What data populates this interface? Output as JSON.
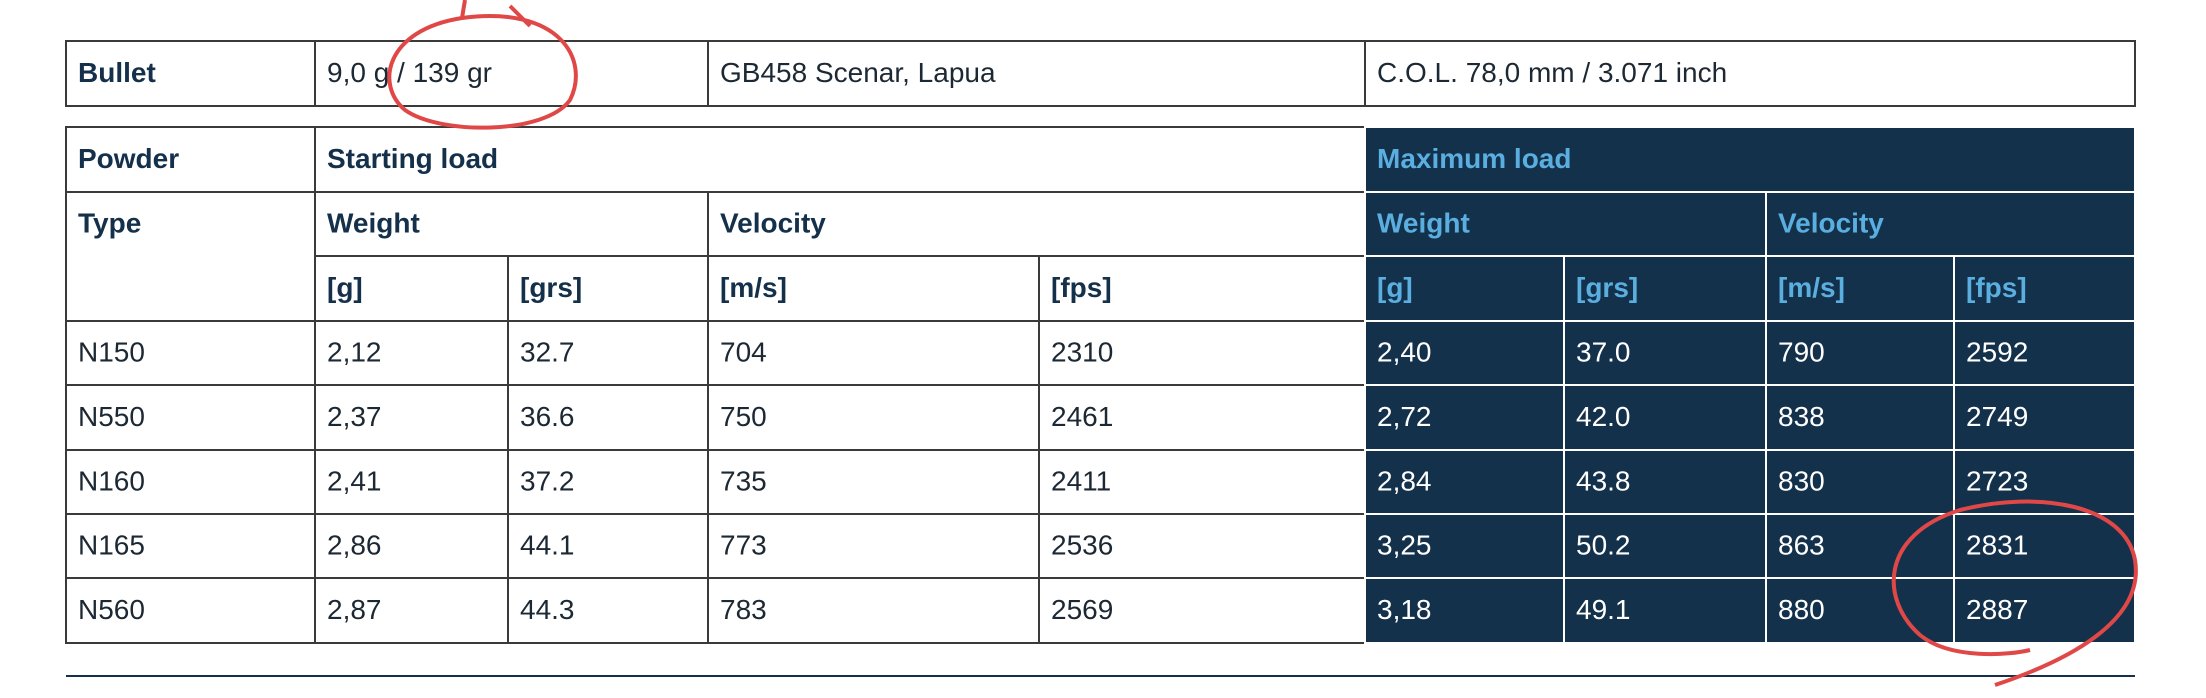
{
  "bullet_row": [
    "Bullet",
    "9,0 g / 139 gr",
    "GB458 Scenar, Lapua",
    "C.O.L. 78,0 mm / 3.071 inch"
  ],
  "header": {
    "powder": "Powder",
    "type": "Type",
    "starting_load": "Starting load",
    "maximum_load": "Maximum load",
    "start_weight": "Weight",
    "start_velocity": "Velocity",
    "max_weight": "Weight",
    "max_velocity": "Velocity",
    "units": [
      "[g]",
      "[grs]",
      "[m/s]",
      "[fps]",
      "[g]",
      "[grs]",
      "[m/s]",
      "[fps]"
    ]
  },
  "rows": [
    [
      "N150",
      "2,12",
      "32.7",
      "704",
      "2310",
      "2,40",
      "37.0",
      "790",
      "2592"
    ],
    [
      "N550",
      "2,37",
      "36.6",
      "750",
      "2461",
      "2,72",
      "42.0",
      "838",
      "2749"
    ],
    [
      "N160",
      "2,41",
      "37.2",
      "735",
      "2411",
      "2,84",
      "43.8",
      "830",
      "2723"
    ],
    [
      "N165",
      "2,86",
      "44.1",
      "773",
      "2536",
      "3,25",
      "50.2",
      "863",
      "2831"
    ],
    [
      "N560",
      "2,87",
      "44.3",
      "783",
      "2569",
      "3,18",
      "49.1",
      "880",
      "2887"
    ]
  ]
}
